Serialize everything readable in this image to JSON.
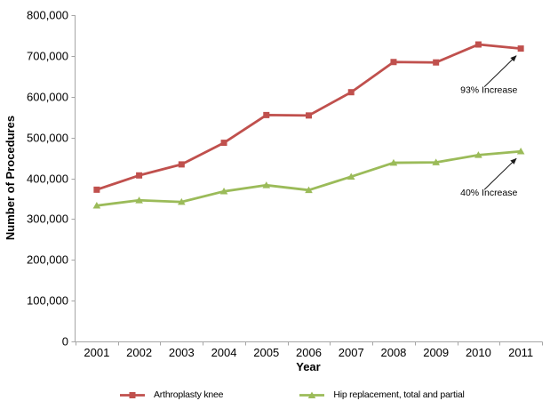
{
  "chart_data": {
    "type": "line",
    "title": "",
    "xlabel": "Year",
    "ylabel": "Number of Procedures",
    "categories": [
      "2001",
      "2002",
      "2003",
      "2004",
      "2005",
      "2006",
      "2007",
      "2008",
      "2009",
      "2010",
      "2011"
    ],
    "series": [
      {
        "name": "Arthroplasty knee",
        "color": "#C0504D",
        "marker": "square",
        "values": [
          372000,
          407000,
          434000,
          487000,
          555000,
          554000,
          611000,
          685000,
          684000,
          728000,
          718000
        ]
      },
      {
        "name": "Hip replacement, total and partial",
        "color": "#9BBB59",
        "marker": "triangle",
        "values": [
          333000,
          346000,
          342000,
          368000,
          383000,
          371000,
          404000,
          438000,
          439000,
          457000,
          466000
        ]
      }
    ],
    "ylim": [
      0,
      800000
    ],
    "ytick_step": 100000,
    "grid": false,
    "legend_position": "bottom",
    "annotations": [
      {
        "text": "93% Increase",
        "series": "Arthroplasty knee",
        "category": "2011"
      },
      {
        "text": "40% Increase",
        "series": "Hip replacement, total and partial",
        "category": "2011"
      }
    ]
  },
  "colors": {
    "axis": "#A6A6A6",
    "text": "#000000",
    "annotation_arrow": "#1a1a1a",
    "background": "#ffffff"
  }
}
